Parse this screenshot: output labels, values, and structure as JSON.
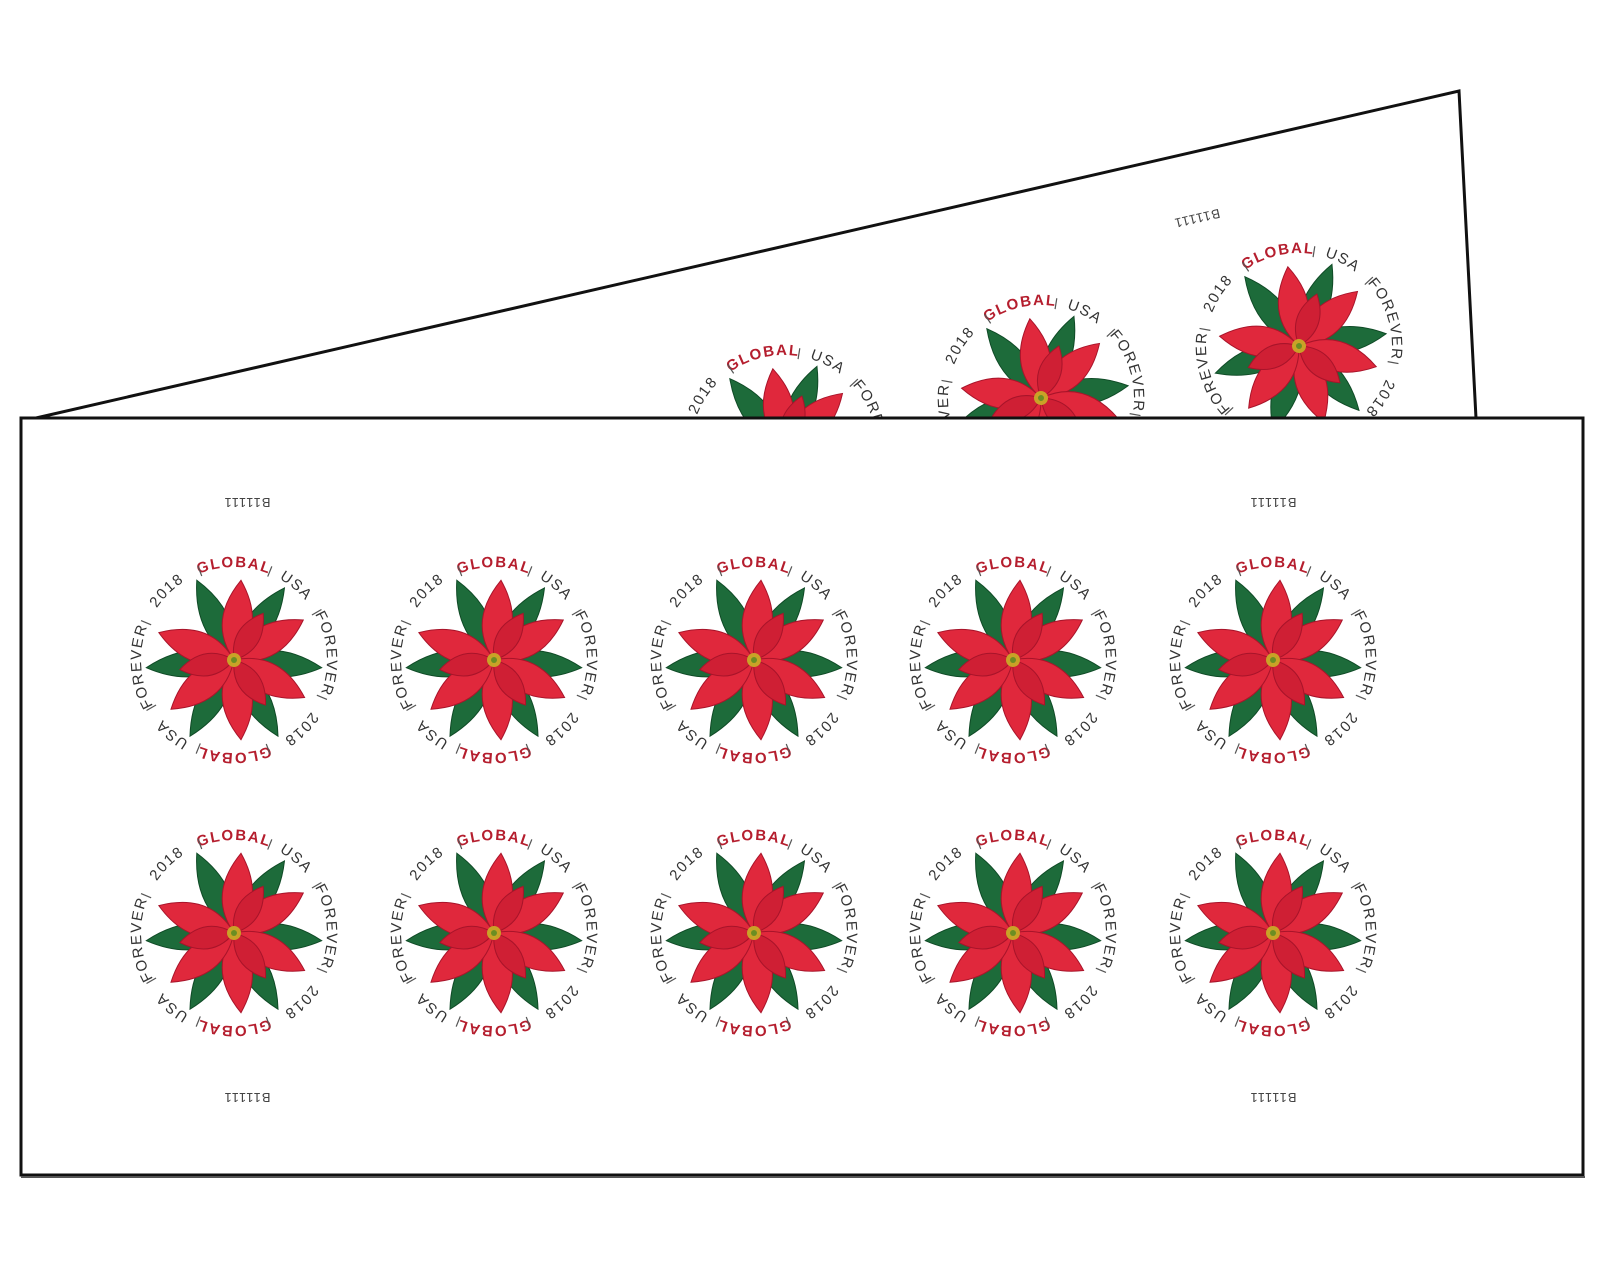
{
  "stamp": {
    "ring": [
      "GLOBAL",
      "USA",
      "FOREVER",
      "2018"
    ]
  },
  "plate_number": "B11111"
}
